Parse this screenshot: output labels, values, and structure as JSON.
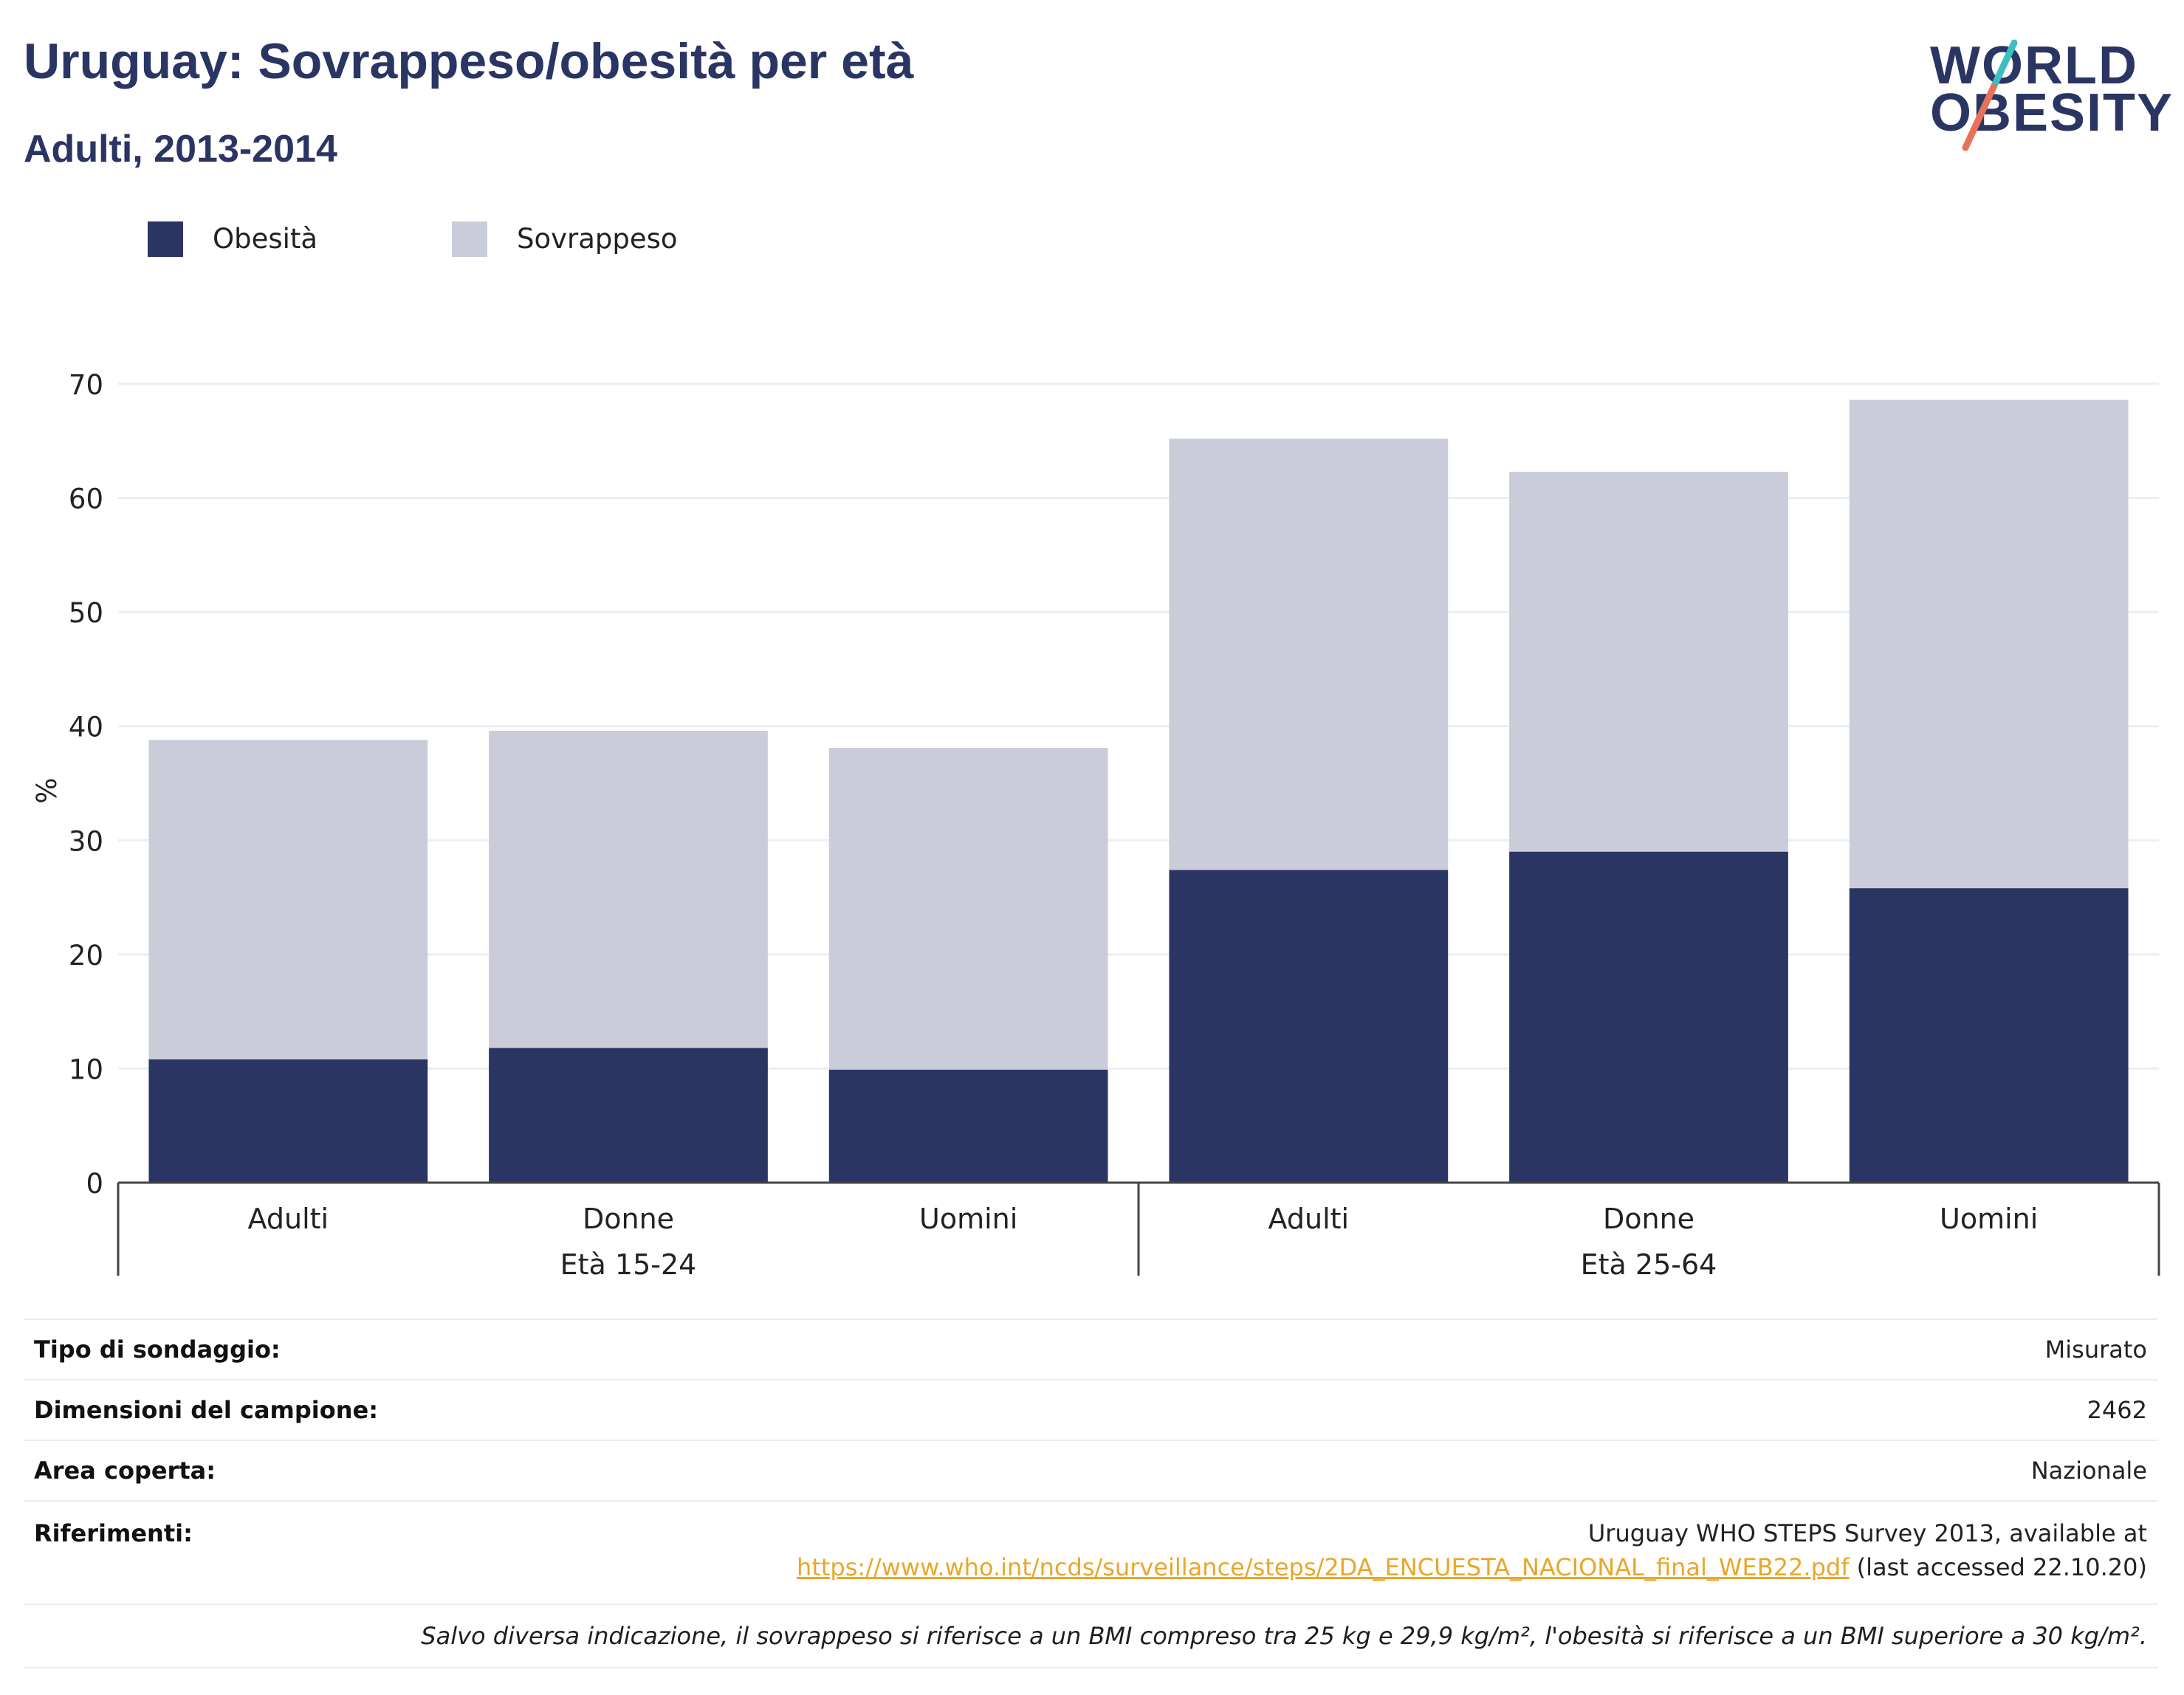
{
  "header": {
    "title": "Uruguay: Sovrappeso/obesità per età",
    "subtitle": "Adulti, 2013-2014"
  },
  "logo": {
    "line1": "WORLD",
    "line2": "OBESITY",
    "accent_colors": [
      "#3bbfbf",
      "#e8715a"
    ]
  },
  "colors": {
    "obesity": "#2a3563",
    "overweight": "#cacdd9",
    "title": "#2a3563",
    "link": "#e8a72a",
    "grid": "#eceef3"
  },
  "chart_data": {
    "type": "bar",
    "stacked": true,
    "ylabel": "%",
    "ylim": [
      0,
      70
    ],
    "yticks": [
      0,
      10,
      20,
      30,
      40,
      50,
      60,
      70
    ],
    "grid": true,
    "legend_position": "top-left",
    "groups": [
      {
        "label": "Età 15-24",
        "categories": [
          "Adulti",
          "Donne",
          "Uomini"
        ]
      },
      {
        "label": "Età 25-64",
        "categories": [
          "Adulti",
          "Donne",
          "Uomini"
        ]
      }
    ],
    "categories": [
      "Adulti",
      "Donne",
      "Uomini",
      "Adulti",
      "Donne",
      "Uomini"
    ],
    "series": [
      {
        "name": "Obesità",
        "values": [
          10.8,
          11.8,
          9.9,
          27.4,
          29.0,
          25.8
        ]
      },
      {
        "name": "Sovrappeso",
        "values": [
          28.0,
          27.8,
          28.2,
          37.8,
          33.3,
          42.8
        ]
      }
    ]
  },
  "legend": [
    {
      "label": "Obesità"
    },
    {
      "label": "Sovrappeso"
    }
  ],
  "info": {
    "survey_type_label": "Tipo di sondaggio:",
    "survey_type_value": "Misurato",
    "sample_size_label": "Dimensioni del campione:",
    "sample_size_value": "2462",
    "area_label": "Area coperta:",
    "area_value": "Nazionale",
    "references_label": "Riferimenti:",
    "references_text": "Uruguay WHO STEPS Survey 2013, available at",
    "references_link": "https://www.who.int/ncds/surveillance/steps/2DA_ENCUESTA_NACIONAL_final_WEB22.pdf",
    "references_suffix": " (last accessed 22.10.20)",
    "note": "Salvo diversa indicazione, il sovrappeso si riferisce a un BMI compreso tra 25 kg e 29,9 kg/m², l'obesità si riferisce a un BMI superiore a 30 kg/m²."
  }
}
